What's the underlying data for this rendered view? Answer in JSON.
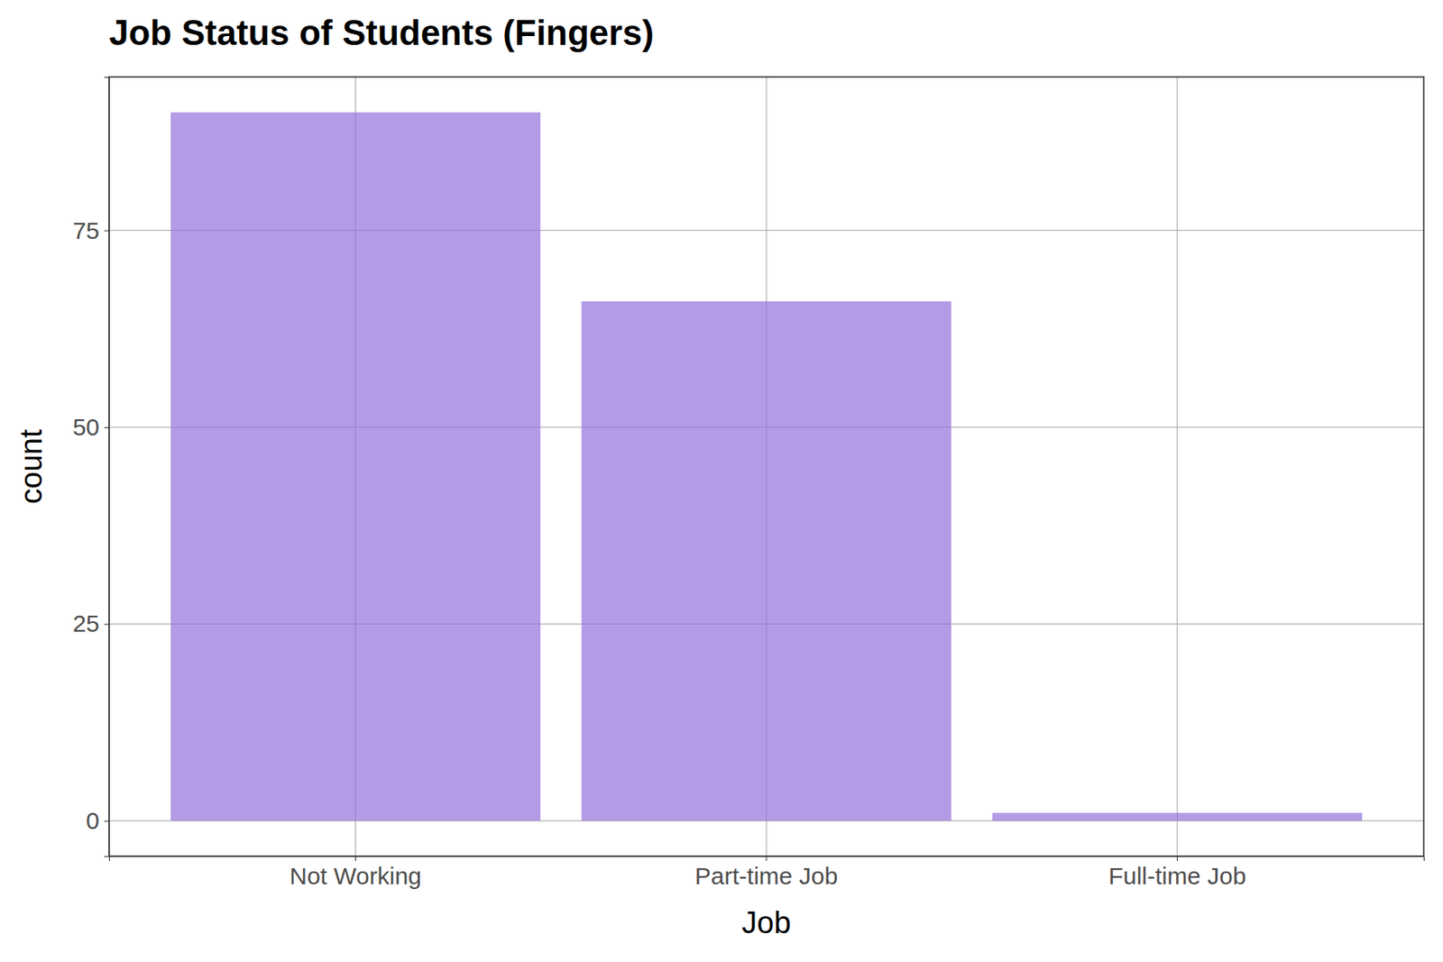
{
  "chart_data": {
    "type": "bar",
    "title": "Job Status of Students (Fingers)",
    "x_label": "Job",
    "y_label": "count",
    "categories": [
      "Not Working",
      "Part-time Job",
      "Full-time Job"
    ],
    "values": [
      90,
      66,
      1
    ],
    "color": "#9370db",
    "ylim": [
      -4.5,
      94.5
    ],
    "yticks": [
      0,
      25,
      50,
      75
    ],
    "grid": true
  }
}
